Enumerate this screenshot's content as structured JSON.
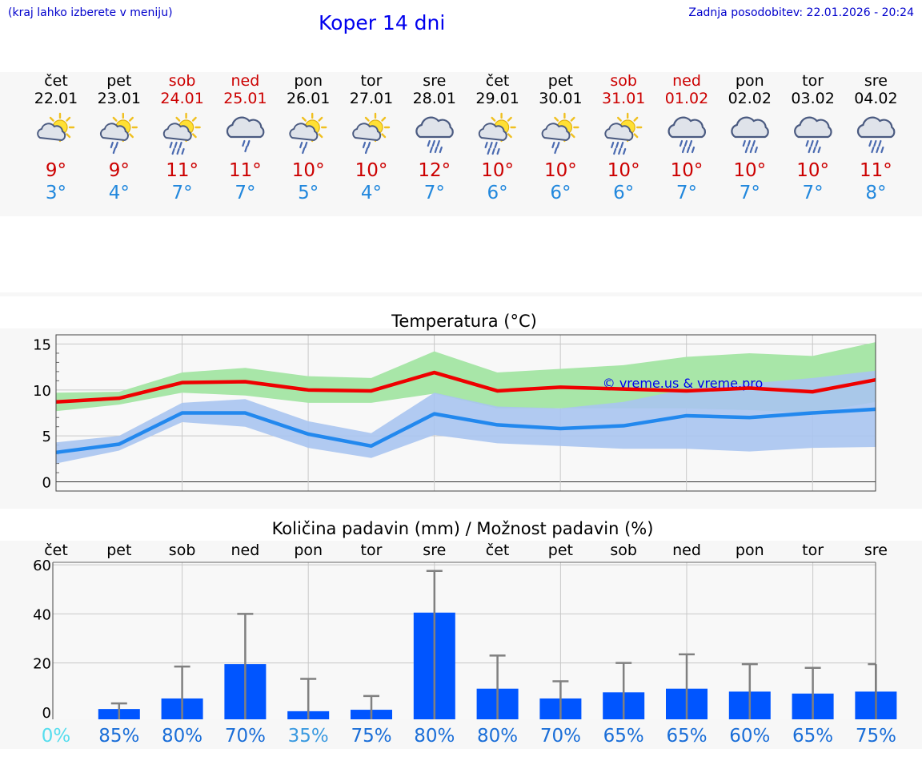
{
  "header": {
    "hint": "(kraj lahko izberete v meniju)",
    "title": "Koper 14 dni",
    "updated": "Zadnja posodobitev: 22.01.2026 - 20:24"
  },
  "colors": {
    "weekday": "#000000",
    "weekend": "#cc0000",
    "tmax": "#ee0000",
    "tmin": "#2288ee",
    "tmax_band": "#a8e6a8",
    "tmin_band": "#a8c4f0",
    "bar": "#0055ff",
    "err": "#808080"
  },
  "days": [
    {
      "name": "čet",
      "date": "22.01",
      "weekend": false,
      "icon": "partly-sunny-cloud-icon",
      "tmax": "9°",
      "tmin": "3°"
    },
    {
      "name": "pet",
      "date": "23.01",
      "weekend": false,
      "icon": "sun-cloud-rain-icon",
      "tmax": "9°",
      "tmin": "4°"
    },
    {
      "name": "sob",
      "date": "24.01",
      "weekend": true,
      "icon": "sun-cloud-heavy-rain-icon",
      "tmax": "11°",
      "tmin": "7°"
    },
    {
      "name": "ned",
      "date": "25.01",
      "weekend": true,
      "icon": "cloud-rain-icon",
      "tmax": "11°",
      "tmin": "7°"
    },
    {
      "name": "pon",
      "date": "26.01",
      "weekend": false,
      "icon": "sun-cloud-rain-icon",
      "tmax": "10°",
      "tmin": "5°"
    },
    {
      "name": "tor",
      "date": "27.01",
      "weekend": false,
      "icon": "sun-cloud-rain-icon",
      "tmax": "10°",
      "tmin": "4°"
    },
    {
      "name": "sre",
      "date": "28.01",
      "weekend": false,
      "icon": "cloud-heavy-rain-icon",
      "tmax": "12°",
      "tmin": "7°"
    },
    {
      "name": "čet",
      "date": "29.01",
      "weekend": false,
      "icon": "sun-cloud-heavy-rain-icon",
      "tmax": "10°",
      "tmin": "6°"
    },
    {
      "name": "pet",
      "date": "30.01",
      "weekend": false,
      "icon": "sun-cloud-rain-icon",
      "tmax": "10°",
      "tmin": "6°"
    },
    {
      "name": "sob",
      "date": "31.01",
      "weekend": true,
      "icon": "sun-cloud-heavy-rain-icon",
      "tmax": "10°",
      "tmin": "6°"
    },
    {
      "name": "ned",
      "date": "01.02",
      "weekend": true,
      "icon": "cloud-heavy-rain-icon",
      "tmax": "10°",
      "tmin": "7°"
    },
    {
      "name": "pon",
      "date": "02.02",
      "weekend": false,
      "icon": "cloud-heavy-rain-icon",
      "tmax": "10°",
      "tmin": "7°"
    },
    {
      "name": "tor",
      "date": "03.02",
      "weekend": false,
      "icon": "cloud-heavy-rain-icon",
      "tmax": "10°",
      "tmin": "7°"
    },
    {
      "name": "sre",
      "date": "04.02",
      "weekend": false,
      "icon": "cloud-heavy-rain-icon",
      "tmax": "11°",
      "tmin": "8°"
    }
  ],
  "chart_data": [
    {
      "type": "line",
      "title": "Temperatura (°C)",
      "watermark": "© vreme.us & vreme.pro",
      "ylim": [
        -1,
        16
      ],
      "yticks": [
        0,
        5,
        10,
        15
      ],
      "xlim": [
        0,
        13
      ],
      "grid": true,
      "x": [
        0,
        1,
        2,
        3,
        4,
        5,
        6,
        7,
        8,
        9,
        10,
        11,
        12,
        13
      ],
      "series": [
        {
          "name": "tmax",
          "values": [
            8.7,
            9.1,
            10.8,
            10.9,
            10.0,
            9.9,
            11.9,
            9.9,
            10.3,
            10.1,
            9.9,
            10.2,
            9.8,
            11.1
          ],
          "band_low": [
            7.7,
            8.4,
            9.7,
            9.4,
            8.6,
            8.6,
            9.6,
            8.0,
            8.0,
            8.0,
            8.0,
            7.8,
            7.5,
            8.7
          ],
          "band_high": [
            9.7,
            9.8,
            11.9,
            12.4,
            11.5,
            11.3,
            14.2,
            11.9,
            12.3,
            12.7,
            13.6,
            14.0,
            13.7,
            15.2
          ]
        },
        {
          "name": "tmin",
          "values": [
            3.2,
            4.1,
            7.5,
            7.5,
            5.2,
            3.9,
            7.4,
            6.2,
            5.8,
            6.1,
            7.2,
            7.0,
            7.5,
            7.9
          ],
          "band_low": [
            2.0,
            3.4,
            6.5,
            6.0,
            3.7,
            2.6,
            5.1,
            4.2,
            3.9,
            3.6,
            3.6,
            3.3,
            3.7,
            3.8
          ],
          "band_high": [
            4.3,
            5.0,
            8.6,
            9.0,
            6.6,
            5.3,
            9.7,
            8.2,
            8.0,
            8.7,
            10.1,
            10.7,
            11.3,
            12.1
          ]
        }
      ]
    },
    {
      "type": "bar",
      "title": "Količina padavin (mm) / Možnost padavin (%)",
      "ylim": [
        -3,
        61
      ],
      "yticks": [
        0,
        20,
        40,
        60
      ],
      "grid": true,
      "categories": [
        "čet",
        "pet",
        "sob",
        "ned",
        "pon",
        "tor",
        "sre",
        "čet",
        "pet",
        "sob",
        "ned",
        "pon",
        "tor",
        "sre"
      ],
      "values": [
        0,
        1.2,
        5.5,
        19.5,
        0.3,
        0.9,
        40.5,
        9.5,
        5.5,
        8.0,
        9.5,
        8.3,
        7.5,
        8.3
      ],
      "error_high": [
        0,
        3.5,
        18.5,
        40.0,
        13.5,
        6.5,
        57.5,
        23.0,
        12.5,
        20.0,
        23.5,
        19.5,
        18.0,
        19.5
      ],
      "probabilities": [
        "0%",
        "85%",
        "80%",
        "70%",
        "35%",
        "75%",
        "80%",
        "80%",
        "70%",
        "65%",
        "65%",
        "60%",
        "65%",
        "75%"
      ],
      "probability_colors": [
        "#55ddee",
        "#1a6ed8",
        "#1a6ed8",
        "#1a6ed8",
        "#3a9ae0",
        "#1a6ed8",
        "#1a6ed8",
        "#1a6ed8",
        "#1a6ed8",
        "#1a6ed8",
        "#1a6ed8",
        "#1a6ed8",
        "#1a6ed8",
        "#1a6ed8"
      ]
    }
  ]
}
